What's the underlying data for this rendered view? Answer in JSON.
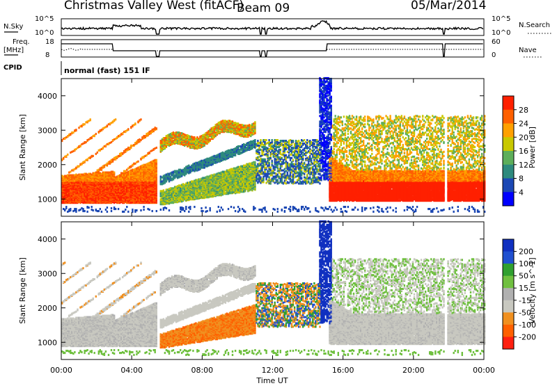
{
  "header": {
    "station": "Christmas Valley West (fitACF)",
    "beam": "Beam 09",
    "date": "05/Mar/2014"
  },
  "top_panels": {
    "nsky_label": "N.Sky",
    "nsky_ticks": [
      "10^5",
      "10^0"
    ],
    "nsearch_label": "N.Search",
    "nsearch_ticks": [
      "10^5",
      "10^0"
    ],
    "freq_label_1": "Freq.",
    "freq_label_2": "[MHz]",
    "freq_ticks": [
      "18",
      "8"
    ],
    "nave_label": "Nave",
    "nave_ticks": [
      "60",
      "0"
    ],
    "cpid_label": "CPID",
    "cpid_text": "normal (fast) 151 IF"
  },
  "x_axis": {
    "label": "Time UT",
    "ticks": [
      "00:00",
      "04:00",
      "08:00",
      "12:00",
      "16:00",
      "20:00",
      "00:00"
    ]
  },
  "chart_data": [
    {
      "type": "heatmap",
      "quantity": "Power",
      "ylabel": "Slant Range [km]",
      "xlabel": "Time UT",
      "x_range": [
        0,
        24
      ],
      "ylim": [
        500,
        4500
      ],
      "y_ticks": [
        "1000",
        "2000",
        "3000",
        "4000"
      ],
      "colorbar": {
        "label": "Power [dB]",
        "ticks": [
          "4",
          "8",
          "12",
          "16",
          "20",
          "24",
          "28"
        ],
        "range": [
          0,
          32
        ],
        "colors": [
          "#0000ff",
          "#1c48b4",
          "#2e8a7d",
          "#5dae5a",
          "#c8c800",
          "#ffa000",
          "#ff6000",
          "#ff2000"
        ]
      }
    },
    {
      "type": "heatmap",
      "quantity": "Velocity",
      "ylabel": "Slant Range [km]",
      "xlabel": "Time UT",
      "x_range": [
        0,
        24
      ],
      "ylim": [
        500,
        4500
      ],
      "y_ticks": [
        "1000",
        "2000",
        "3000",
        "4000"
      ],
      "colorbar": {
        "label": "Velocity [m s^-1]",
        "ticks": [
          "200",
          "100",
          "50",
          "15",
          "-15",
          "-50",
          "-100",
          "-200"
        ],
        "range": [
          -250,
          250
        ],
        "colors": [
          "#1030c0",
          "#2050d0",
          "#30a030",
          "#70c040",
          "#b0b0b0",
          "#c8c8c0",
          "#f09020",
          "#ff6000",
          "#ff2010"
        ]
      }
    }
  ]
}
